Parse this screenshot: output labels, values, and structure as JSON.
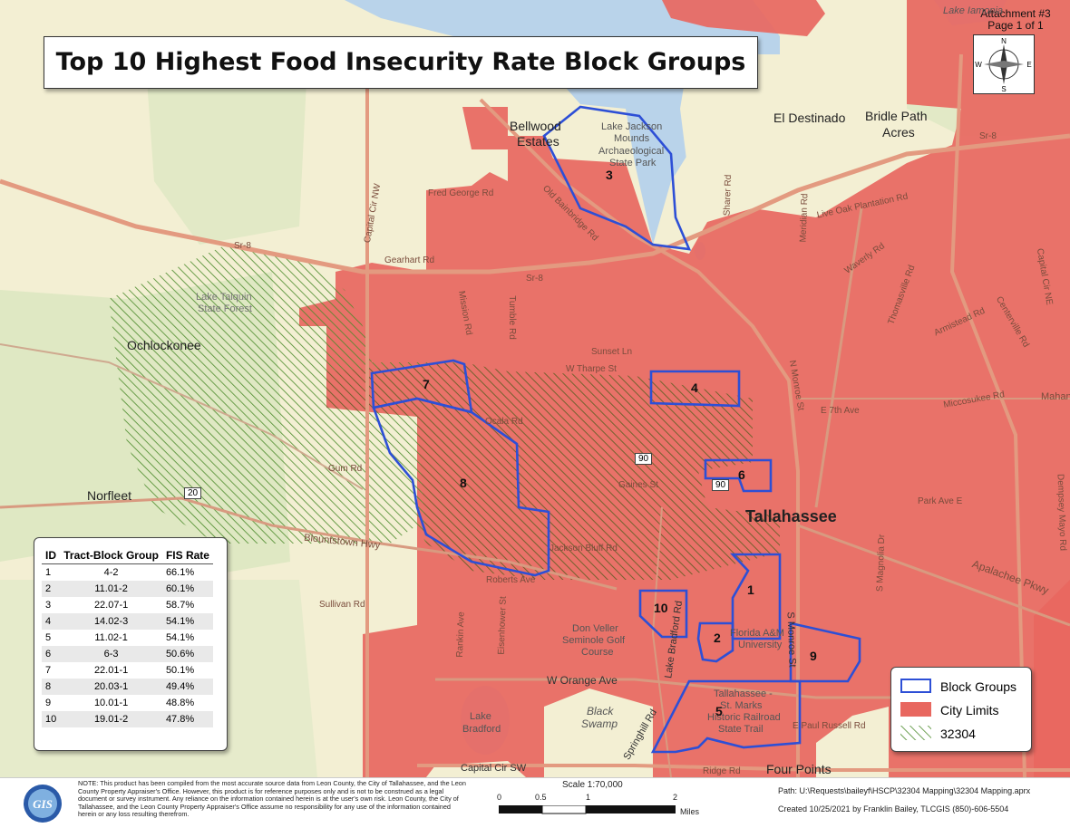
{
  "title": "Top 10 Highest Food Insecurity Rate Block Groups",
  "attachment": {
    "line1": "Attachment #3",
    "line2": "Page 1 of 1"
  },
  "north_arrow": {
    "n": "N",
    "s": "S",
    "e": "E",
    "w": "W"
  },
  "place_labels": [
    {
      "text": "Bellwood"
    },
    {
      "text": "Estates"
    },
    {
      "text": "Lake Jackson"
    },
    {
      "text": "Mounds"
    },
    {
      "text": "Archaeological"
    },
    {
      "text": "State Park"
    },
    {
      "text": "El Destinado"
    },
    {
      "text": "Bridle Path"
    },
    {
      "text": "Acres"
    },
    {
      "text": "Ochlockonee"
    },
    {
      "text": "Lake Talquin"
    },
    {
      "text": "State Forest"
    },
    {
      "text": "Norfleet"
    },
    {
      "text": "Don Veller"
    },
    {
      "text": "Seminole Golf"
    },
    {
      "text": "Course"
    },
    {
      "text": "Lake"
    },
    {
      "text": "Bradford"
    },
    {
      "text": "Black"
    },
    {
      "text": "Swamp"
    },
    {
      "text": "Florida A&M"
    },
    {
      "text": "University"
    },
    {
      "text": "Tallahassee -"
    },
    {
      "text": "St. Marks"
    },
    {
      "text": "Historic Railroad"
    },
    {
      "text": "State Trail"
    },
    {
      "text": "Four Points"
    },
    {
      "text": "Lake Iamonia"
    }
  ],
  "city_label": "Tallahassee",
  "street_labels": [
    "Sr-8",
    "Sr-8",
    "Sr-8",
    "Capital Cir NW",
    "Gearhart Rd",
    "Fred George Rd",
    "Old Bainbridge Rd",
    "N Monroe St",
    "Sharer Rd",
    "Live Oak Plantation Rd",
    "Thomasville Rd",
    "Capital Cir NE",
    "Mission Rd",
    "Tumble Rd",
    "Sunset Ln",
    "W Tharpe St",
    "Miccosukee Rd",
    "E 7th Ave",
    "Park Ave E",
    "Apalachee Pkwy",
    "Blountstown Hwy",
    "Sullivan Rd",
    "W Orange Ave",
    "E Paul Russell Rd",
    "Capital Cir SW",
    "Ridge Rd",
    "S Monroe St",
    "S Magnolia Dr",
    "Lake Bradford Rd",
    "Springhill Rd",
    "Eisenhower St",
    "Rankin Ave",
    "Roberts Ave",
    "Gum Rd",
    "Ocala Rd",
    "Gaines St",
    "Jackson Bluff Rd",
    "Mahan Dr",
    "Centerville Rd",
    "Waverly Rd",
    "Armistead Rd",
    "Meridian Rd",
    "Dempsey Mayo Rd"
  ],
  "highway_shields": [
    "20",
    "90",
    "90"
  ],
  "block_group_labels": [
    "1",
    "2",
    "3",
    "4",
    "5",
    "6",
    "7",
    "8",
    "9",
    "10"
  ],
  "table": {
    "headers": [
      "ID",
      "Tract-Block Group",
      "FIS Rate"
    ],
    "rows": [
      {
        "id": "1",
        "tract": "4-2",
        "rate": "66.1%"
      },
      {
        "id": "2",
        "tract": "11.01-2",
        "rate": "60.1%"
      },
      {
        "id": "3",
        "tract": "22.07-1",
        "rate": "58.7%"
      },
      {
        "id": "4",
        "tract": "14.02-3",
        "rate": "54.1%"
      },
      {
        "id": "5",
        "tract": "11.02-1",
        "rate": "54.1%"
      },
      {
        "id": "6",
        "tract": "6-3",
        "rate": "50.6%"
      },
      {
        "id": "7",
        "tract": "22.01-1",
        "rate": "50.1%"
      },
      {
        "id": "8",
        "tract": "20.03-1",
        "rate": "49.4%"
      },
      {
        "id": "9",
        "tract": "10.01-1",
        "rate": "48.8%"
      },
      {
        "id": "10",
        "tract": "19.01-2",
        "rate": "47.8%"
      }
    ]
  },
  "legend": {
    "block_groups": "Block Groups",
    "city_limits": "City Limits",
    "zip": "32304",
    "colors": {
      "block_groups": "#2d4fd6",
      "city_limits": "#e8675f",
      "zip": "#4a8a2a"
    }
  },
  "footer": {
    "note": "NOTE:  This product has been compiled from the most accurate source data from Leon County, the City of Tallahassee, and the Leon County Property Appraiser's Office.  However, this product is for reference purposes only and is not to be construed as a legal document or survey instrument.  Any reliance on the information contained herein is at the user's own risk. Leon County, the City of Tallahassee, and the Leon County Property Appraiser's Office assume no responsibility for any use of the information contained herein or any loss resulting therefrom.",
    "scale_title": "Scale 1:70,000",
    "scale_ticks": [
      "0",
      "0.5",
      "1",
      "2"
    ],
    "scale_unit": "Miles",
    "path": "Path: U:\\Requests\\baileyf\\HSCP\\32304 Mapping\\32304 Mapping.aprx",
    "created": "Created 10/25/2021 by Franklin Bailey, TLCGIS (850)-606-5504",
    "logo_text": "GIS"
  }
}
